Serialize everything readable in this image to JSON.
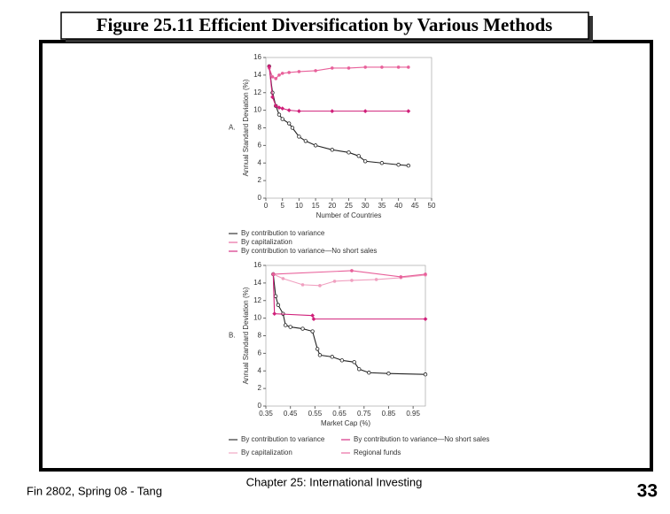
{
  "slide": {
    "title": "Figure 25.11 Efficient Diversification by Various Methods",
    "footer_left": "Fin 2802, Spring 08 - Tang",
    "footer_center": "Chapter 25: International Investing",
    "page_number": "33"
  },
  "chart_data": [
    {
      "type": "line",
      "panel_label": "A.",
      "x_label": "Number of Countries",
      "y_label": "Annual Standard Deviation (%)",
      "xlim": [
        0,
        50
      ],
      "xticks": [
        0,
        5,
        10,
        15,
        20,
        25,
        30,
        35,
        40,
        45,
        50
      ],
      "ylim": [
        0,
        16
      ],
      "yticks": [
        0,
        2,
        4,
        6,
        8,
        10,
        12,
        14,
        16
      ],
      "series": [
        {
          "name": "By contribution to variance",
          "color": "#222222",
          "marker": "circle-open",
          "x": [
            1,
            2,
            3,
            4,
            5,
            7,
            8,
            10,
            12,
            15,
            20,
            25,
            28,
            30,
            35,
            40,
            43
          ],
          "values": [
            15,
            12,
            10.5,
            9.5,
            9,
            8.5,
            8,
            7,
            6.5,
            6,
            5.5,
            5.2,
            4.8,
            4.2,
            4,
            3.8,
            3.7
          ]
        },
        {
          "name": "By capitalization",
          "color": "#e8609a",
          "marker": "dot",
          "x": [
            1,
            2,
            3,
            4,
            5,
            7,
            10,
            15,
            20,
            25,
            30,
            35,
            40,
            43
          ],
          "values": [
            14.8,
            13.8,
            13.6,
            14,
            14.2,
            14.3,
            14.4,
            14.5,
            14.8,
            14.8,
            14.9,
            14.9,
            14.9,
            14.9
          ]
        },
        {
          "name": "By contribution to variance—No short sales",
          "color": "#d0207a",
          "marker": "diamond",
          "x": [
            1,
            2,
            3,
            4,
            5,
            7,
            10,
            20,
            30,
            43
          ],
          "values": [
            15,
            11.5,
            10.5,
            10.3,
            10.2,
            10,
            9.9,
            9.9,
            9.9,
            9.9
          ]
        }
      ]
    },
    {
      "type": "line",
      "panel_label": "B.",
      "x_label": "Market Cap (%)",
      "y_label": "Annual Standard Deviation (%)",
      "xlim": [
        0.35,
        1.0
      ],
      "xticks": [
        0.35,
        0.45,
        0.55,
        0.65,
        0.75,
        0.85,
        0.95
      ],
      "ylim": [
        0,
        16
      ],
      "yticks": [
        0,
        2,
        4,
        6,
        8,
        10,
        12,
        14,
        16
      ],
      "series": [
        {
          "name": "By contribution to variance",
          "color": "#222222",
          "marker": "circle-open",
          "x": [
            0.38,
            0.39,
            0.4,
            0.42,
            0.43,
            0.45,
            0.5,
            0.54,
            0.56,
            0.57,
            0.62,
            0.66,
            0.71,
            0.73,
            0.77,
            0.85,
            1.0
          ],
          "values": [
            15,
            12.5,
            11.5,
            10.5,
            9.2,
            9,
            8.8,
            8.5,
            6.5,
            5.8,
            5.6,
            5.2,
            5,
            4.2,
            3.8,
            3.7,
            3.6
          ]
        },
        {
          "name": "By capitalization",
          "color": "#f0a0c0",
          "marker": "dot",
          "x": [
            0.38,
            0.42,
            0.5,
            0.57,
            0.63,
            0.7,
            0.8,
            0.9,
            1.0
          ],
          "values": [
            15,
            14.5,
            13.8,
            13.7,
            14.2,
            14.3,
            14.4,
            14.6,
            14.9
          ]
        },
        {
          "name": "By contribution to variance—No short sales",
          "color": "#d0207a",
          "marker": "diamond",
          "x": [
            0.38,
            0.385,
            0.54,
            0.545,
            1.0
          ],
          "values": [
            15,
            10.5,
            10.3,
            9.9,
            9.9
          ]
        },
        {
          "name": "Regional funds",
          "color": "#e8609a",
          "marker": "dot",
          "x": [
            0.38,
            0.7,
            0.9,
            1.0
          ],
          "values": [
            15,
            15.4,
            14.7,
            15
          ]
        }
      ]
    }
  ]
}
